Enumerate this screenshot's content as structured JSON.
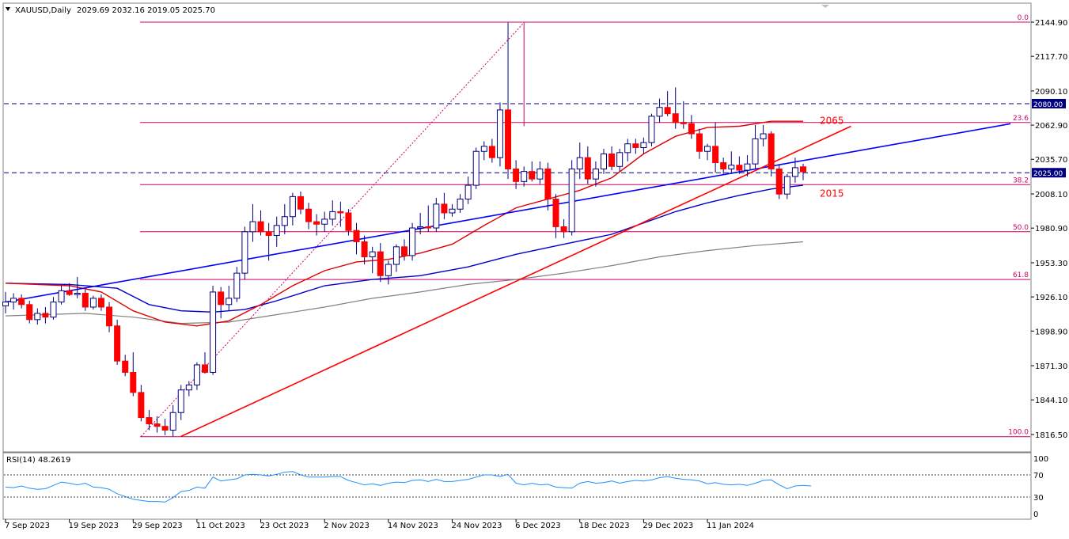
{
  "header": {
    "symbol_label": "XAUUSD,Daily",
    "ohlc_label": "2029.69 2032.16 2019.05 2025.70"
  },
  "rsi_header": "RSI(14) 48.2619",
  "colors": {
    "bull_body": "#ffffff",
    "bear_body": "#ff0000",
    "wick": "#000080",
    "fib": "#cc0066",
    "ma_fast": "#e00000",
    "ma_mid": "#0000cc",
    "ma_slow": "#808080",
    "trend_blue": "#0000ff",
    "trend_red": "#ff0000",
    "level_line": "#000080",
    "rsi_line": "#1e90ff"
  },
  "chart_data": {
    "type": "candlestick",
    "y_ticks": [
      "2144.90",
      "2117.70",
      "2090.10",
      "2062.90",
      "2035.70",
      "2008.10",
      "1980.90",
      "1953.30",
      "1926.10",
      "1898.90",
      "1871.30",
      "1844.10",
      "1816.50"
    ],
    "x_ticks": [
      {
        "label": "7 Sep 2023",
        "i": 0
      },
      {
        "label": "19 Sep 2023",
        "i": 8
      },
      {
        "label": "29 Sep 2023",
        "i": 16
      },
      {
        "label": "11 Oct 2023",
        "i": 24
      },
      {
        "label": "23 Oct 2023",
        "i": 32
      },
      {
        "label": "2 Nov 2023",
        "i": 40
      },
      {
        "label": "14 Nov 2023",
        "i": 48
      },
      {
        "label": "24 Nov 2023",
        "i": 56
      },
      {
        "label": "6 Dec 2023",
        "i": 64
      },
      {
        "label": "18 Dec 2023",
        "i": 72
      },
      {
        "label": "29 Dec 2023",
        "i": 80
      },
      {
        "label": "11 Jan 2024",
        "i": 88
      }
    ],
    "candles": [
      {
        "o": 1919,
        "h": 1930,
        "l": 1913,
        "c": 1922
      },
      {
        "o": 1922,
        "h": 1929,
        "l": 1916,
        "c": 1925
      },
      {
        "o": 1925,
        "h": 1928,
        "l": 1917,
        "c": 1920
      },
      {
        "o": 1920,
        "h": 1923,
        "l": 1905,
        "c": 1908
      },
      {
        "o": 1908,
        "h": 1917,
        "l": 1904,
        "c": 1913
      },
      {
        "o": 1913,
        "h": 1918,
        "l": 1905,
        "c": 1910
      },
      {
        "o": 1910,
        "h": 1926,
        "l": 1908,
        "c": 1922
      },
      {
        "o": 1922,
        "h": 1935,
        "l": 1920,
        "c": 1931
      },
      {
        "o": 1931,
        "h": 1937,
        "l": 1927,
        "c": 1928
      },
      {
        "o": 1928,
        "h": 1942,
        "l": 1925,
        "c": 1929
      },
      {
        "o": 1929,
        "h": 1932,
        "l": 1915,
        "c": 1918
      },
      {
        "o": 1918,
        "h": 1927,
        "l": 1916,
        "c": 1925
      },
      {
        "o": 1925,
        "h": 1928,
        "l": 1915,
        "c": 1918
      },
      {
        "o": 1918,
        "h": 1922,
        "l": 1898,
        "c": 1903
      },
      {
        "o": 1903,
        "h": 1908,
        "l": 1872,
        "c": 1875
      },
      {
        "o": 1875,
        "h": 1880,
        "l": 1863,
        "c": 1866
      },
      {
        "o": 1866,
        "h": 1882,
        "l": 1847,
        "c": 1850
      },
      {
        "o": 1850,
        "h": 1856,
        "l": 1827,
        "c": 1830
      },
      {
        "o": 1830,
        "h": 1836,
        "l": 1820,
        "c": 1825
      },
      {
        "o": 1825,
        "h": 1831,
        "l": 1818,
        "c": 1823
      },
      {
        "o": 1823,
        "h": 1829,
        "l": 1816,
        "c": 1820
      },
      {
        "o": 1820,
        "h": 1840,
        "l": 1815,
        "c": 1834
      },
      {
        "o": 1834,
        "h": 1856,
        "l": 1828,
        "c": 1852
      },
      {
        "o": 1852,
        "h": 1859,
        "l": 1847,
        "c": 1856
      },
      {
        "o": 1856,
        "h": 1874,
        "l": 1852,
        "c": 1872
      },
      {
        "o": 1872,
        "h": 1882,
        "l": 1865,
        "c": 1866
      },
      {
        "o": 1866,
        "h": 1935,
        "l": 1864,
        "c": 1930
      },
      {
        "o": 1930,
        "h": 1934,
        "l": 1909,
        "c": 1920
      },
      {
        "o": 1920,
        "h": 1935,
        "l": 1915,
        "c": 1925
      },
      {
        "o": 1925,
        "h": 1950,
        "l": 1922,
        "c": 1945
      },
      {
        "o": 1945,
        "h": 1982,
        "l": 1940,
        "c": 1978
      },
      {
        "o": 1978,
        "h": 2000,
        "l": 1970,
        "c": 1986
      },
      {
        "o": 1986,
        "h": 1995,
        "l": 1975,
        "c": 1978
      },
      {
        "o": 1978,
        "h": 1985,
        "l": 1955,
        "c": 1975
      },
      {
        "o": 1975,
        "h": 1990,
        "l": 1966,
        "c": 1983
      },
      {
        "o": 1983,
        "h": 2000,
        "l": 1976,
        "c": 1990
      },
      {
        "o": 1990,
        "h": 2009,
        "l": 1983,
        "c": 2006
      },
      {
        "o": 2006,
        "h": 2010,
        "l": 1992,
        "c": 1996
      },
      {
        "o": 1996,
        "h": 2001,
        "l": 1980,
        "c": 1986
      },
      {
        "o": 1986,
        "h": 1992,
        "l": 1975,
        "c": 1984
      },
      {
        "o": 1984,
        "h": 1994,
        "l": 1978,
        "c": 1988
      },
      {
        "o": 1988,
        "h": 2003,
        "l": 1983,
        "c": 1994
      },
      {
        "o": 1994,
        "h": 2002,
        "l": 1982,
        "c": 1993
      },
      {
        "o": 1993,
        "h": 1996,
        "l": 1975,
        "c": 1979
      },
      {
        "o": 1979,
        "h": 1985,
        "l": 1960,
        "c": 1970
      },
      {
        "o": 1970,
        "h": 1975,
        "l": 1952,
        "c": 1958
      },
      {
        "o": 1958,
        "h": 1966,
        "l": 1945,
        "c": 1962
      },
      {
        "o": 1962,
        "h": 1969,
        "l": 1938,
        "c": 1943
      },
      {
        "o": 1943,
        "h": 1955,
        "l": 1936,
        "c": 1952
      },
      {
        "o": 1952,
        "h": 1968,
        "l": 1946,
        "c": 1966
      },
      {
        "o": 1966,
        "h": 1972,
        "l": 1955,
        "c": 1959
      },
      {
        "o": 1959,
        "h": 1985,
        "l": 1955,
        "c": 1981
      },
      {
        "o": 1981,
        "h": 1993,
        "l": 1976,
        "c": 1982
      },
      {
        "o": 1982,
        "h": 1999,
        "l": 1978,
        "c": 1981
      },
      {
        "o": 1981,
        "h": 2005,
        "l": 1978,
        "c": 2000
      },
      {
        "o": 2000,
        "h": 2009,
        "l": 1988,
        "c": 1993
      },
      {
        "o": 1993,
        "h": 2000,
        "l": 1990,
        "c": 1996
      },
      {
        "o": 1996,
        "h": 2008,
        "l": 1993,
        "c": 2004
      },
      {
        "o": 2004,
        "h": 2022,
        "l": 2000,
        "c": 2015
      },
      {
        "o": 2015,
        "h": 2045,
        "l": 2012,
        "c": 2042
      },
      {
        "o": 2042,
        "h": 2050,
        "l": 2035,
        "c": 2046
      },
      {
        "o": 2046,
        "h": 2052,
        "l": 2033,
        "c": 2037
      },
      {
        "o": 2037,
        "h": 2081,
        "l": 2030,
        "c": 2075
      },
      {
        "o": 2075,
        "h": 2144.5,
        "l": 2020,
        "c": 2028
      },
      {
        "o": 2028,
        "h": 2035,
        "l": 2012,
        "c": 2018
      },
      {
        "o": 2018,
        "h": 2030,
        "l": 2014,
        "c": 2026
      },
      {
        "o": 2026,
        "h": 2034,
        "l": 2018,
        "c": 2020
      },
      {
        "o": 2020,
        "h": 2034,
        "l": 2016,
        "c": 2028
      },
      {
        "o": 2028,
        "h": 2033,
        "l": 1995,
        "c": 2004
      },
      {
        "o": 2004,
        "h": 2008,
        "l": 1973,
        "c": 1982
      },
      {
        "o": 1982,
        "h": 1988,
        "l": 1973,
        "c": 1978
      },
      {
        "o": 1978,
        "h": 2035,
        "l": 1975,
        "c": 2028
      },
      {
        "o": 2028,
        "h": 2049,
        "l": 2020,
        "c": 2037
      },
      {
        "o": 2037,
        "h": 2046,
        "l": 2016,
        "c": 2020
      },
      {
        "o": 2020,
        "h": 2034,
        "l": 2014,
        "c": 2028
      },
      {
        "o": 2028,
        "h": 2044,
        "l": 2024,
        "c": 2040
      },
      {
        "o": 2040,
        "h": 2046,
        "l": 2027,
        "c": 2030
      },
      {
        "o": 2030,
        "h": 2044,
        "l": 2026,
        "c": 2041
      },
      {
        "o": 2041,
        "h": 2052,
        "l": 2034,
        "c": 2048
      },
      {
        "o": 2048,
        "h": 2052,
        "l": 2040,
        "c": 2045
      },
      {
        "o": 2045,
        "h": 2053,
        "l": 2040,
        "c": 2049
      },
      {
        "o": 2049,
        "h": 2072,
        "l": 2046,
        "c": 2070
      },
      {
        "o": 2070,
        "h": 2084,
        "l": 2065,
        "c": 2077
      },
      {
        "o": 2077,
        "h": 2090,
        "l": 2070,
        "c": 2072
      },
      {
        "o": 2072,
        "h": 2093,
        "l": 2060,
        "c": 2065
      },
      {
        "o": 2065,
        "h": 2082,
        "l": 2060,
        "c": 2064
      },
      {
        "o": 2064,
        "h": 2071,
        "l": 2052,
        "c": 2056
      },
      {
        "o": 2056,
        "h": 2060,
        "l": 2036,
        "c": 2042
      },
      {
        "o": 2042,
        "h": 2048,
        "l": 2035,
        "c": 2046
      },
      {
        "o": 2046,
        "h": 2065,
        "l": 2025,
        "c": 2033
      },
      {
        "o": 2033,
        "h": 2037,
        "l": 2024,
        "c": 2028
      },
      {
        "o": 2028,
        "h": 2042,
        "l": 2024,
        "c": 2031
      },
      {
        "o": 2031,
        "h": 2038,
        "l": 2024,
        "c": 2027
      },
      {
        "o": 2027,
        "h": 2039,
        "l": 2022,
        "c": 2032
      },
      {
        "o": 2032,
        "h": 2063,
        "l": 2028,
        "c": 2052
      },
      {
        "o": 2052,
        "h": 2063,
        "l": 2046,
        "c": 2056
      },
      {
        "o": 2056,
        "h": 2058,
        "l": 2022,
        "c": 2028
      },
      {
        "o": 2028,
        "h": 2031,
        "l": 2004,
        "c": 2008
      },
      {
        "o": 2008,
        "h": 2024,
        "l": 2004,
        "c": 2022
      },
      {
        "o": 2022,
        "h": 2037,
        "l": 2017,
        "c": 2029
      },
      {
        "o": 2029.69,
        "h": 2032.16,
        "l": 2019.05,
        "c": 2025.7
      }
    ],
    "ma_fast": [
      {
        "i": 0,
        "v": 1937
      },
      {
        "i": 8,
        "v": 1935
      },
      {
        "i": 12,
        "v": 1930
      },
      {
        "i": 16,
        "v": 1915
      },
      {
        "i": 20,
        "v": 1906
      },
      {
        "i": 24,
        "v": 1903
      },
      {
        "i": 28,
        "v": 1907
      },
      {
        "i": 32,
        "v": 1920
      },
      {
        "i": 36,
        "v": 1935
      },
      {
        "i": 40,
        "v": 1947
      },
      {
        "i": 44,
        "v": 1954
      },
      {
        "i": 48,
        "v": 1956
      },
      {
        "i": 52,
        "v": 1961
      },
      {
        "i": 56,
        "v": 1968
      },
      {
        "i": 60,
        "v": 1983
      },
      {
        "i": 64,
        "v": 1997
      },
      {
        "i": 68,
        "v": 2004
      },
      {
        "i": 72,
        "v": 2011
      },
      {
        "i": 76,
        "v": 2021
      },
      {
        "i": 80,
        "v": 2040
      },
      {
        "i": 84,
        "v": 2054
      },
      {
        "i": 88,
        "v": 2061
      },
      {
        "i": 92,
        "v": 2062
      },
      {
        "i": 96,
        "v": 2066
      },
      {
        "i": 100,
        "v": 2066
      }
    ],
    "ma_mid": [
      {
        "i": 0,
        "v": 1937
      },
      {
        "i": 8,
        "v": 1936
      },
      {
        "i": 14,
        "v": 1933
      },
      {
        "i": 18,
        "v": 1920
      },
      {
        "i": 22,
        "v": 1915
      },
      {
        "i": 26,
        "v": 1914
      },
      {
        "i": 30,
        "v": 1916
      },
      {
        "i": 34,
        "v": 1923
      },
      {
        "i": 40,
        "v": 1935
      },
      {
        "i": 46,
        "v": 1940
      },
      {
        "i": 52,
        "v": 1943
      },
      {
        "i": 58,
        "v": 1950
      },
      {
        "i": 64,
        "v": 1960
      },
      {
        "i": 70,
        "v": 1968
      },
      {
        "i": 76,
        "v": 1976
      },
      {
        "i": 80,
        "v": 1985
      },
      {
        "i": 84,
        "v": 1994
      },
      {
        "i": 88,
        "v": 2001
      },
      {
        "i": 92,
        "v": 2007
      },
      {
        "i": 96,
        "v": 2012
      },
      {
        "i": 100,
        "v": 2015
      }
    ],
    "ma_slow": [
      {
        "i": 0,
        "v": 1911
      },
      {
        "i": 10,
        "v": 1913
      },
      {
        "i": 16,
        "v": 1910
      },
      {
        "i": 22,
        "v": 1905
      },
      {
        "i": 28,
        "v": 1906
      },
      {
        "i": 34,
        "v": 1912
      },
      {
        "i": 40,
        "v": 1918
      },
      {
        "i": 46,
        "v": 1925
      },
      {
        "i": 52,
        "v": 1930
      },
      {
        "i": 58,
        "v": 1936
      },
      {
        "i": 64,
        "v": 1940
      },
      {
        "i": 70,
        "v": 1945
      },
      {
        "i": 76,
        "v": 1951
      },
      {
        "i": 82,
        "v": 1958
      },
      {
        "i": 88,
        "v": 1963
      },
      {
        "i": 94,
        "v": 1967
      },
      {
        "i": 100,
        "v": 1970
      }
    ],
    "fib_levels": [
      {
        "label": "0.0",
        "v": 2144.9
      },
      {
        "label": "23.6",
        "v": 2065
      },
      {
        "label": "38.2",
        "v": 2015.5
      },
      {
        "label": "50.0",
        "v": 1978
      },
      {
        "label": "61.8",
        "v": 1940
      },
      {
        "label": "100.0",
        "v": 1814.8
      }
    ],
    "h_levels": [
      {
        "label": "2080.00",
        "v": 2080
      },
      {
        "label": "2025.00",
        "v": 2025
      }
    ],
    "annotations": [
      {
        "text": "2065",
        "i": 100.5,
        "v": 2064
      },
      {
        "text": "2015",
        "i": 100.5,
        "v": 2006
      }
    ],
    "trendlines": [
      {
        "color": "trend_blue",
        "i1": 0,
        "v1": 1922,
        "i2": 126,
        "v2": 2064
      },
      {
        "color": "trend_red",
        "i1": 22,
        "v1": 1815,
        "i2": 106,
        "v2": 2062
      }
    ],
    "fib_diag": {
      "i1": 17,
      "v1": 1815,
      "i2": 65,
      "v2": 2144.5
    },
    "rsi": {
      "y_ticks": [
        "100",
        "70",
        "30",
        "0"
      ],
      "levels": [
        70,
        30
      ],
      "values": [
        48,
        47,
        50,
        46,
        44,
        45,
        51,
        57,
        55,
        52,
        55,
        48,
        47,
        44,
        36,
        31,
        26,
        24,
        22,
        22,
        21,
        29,
        40,
        42,
        48,
        46,
        66,
        59,
        61,
        63,
        70,
        71,
        70,
        68,
        71,
        75,
        76,
        70,
        66,
        66,
        66,
        67,
        67,
        60,
        56,
        52,
        54,
        51,
        55,
        57,
        56,
        60,
        61,
        58,
        62,
        58,
        58,
        60,
        62,
        66,
        70,
        70,
        67,
        71,
        55,
        52,
        55,
        52,
        53,
        48,
        47,
        46,
        55,
        58,
        55,
        56,
        59,
        55,
        58,
        60,
        59,
        61,
        65,
        67,
        64,
        62,
        61,
        59,
        54,
        56,
        53,
        52,
        53,
        51,
        55,
        60,
        61,
        52,
        45,
        50,
        51,
        50
      ]
    }
  }
}
